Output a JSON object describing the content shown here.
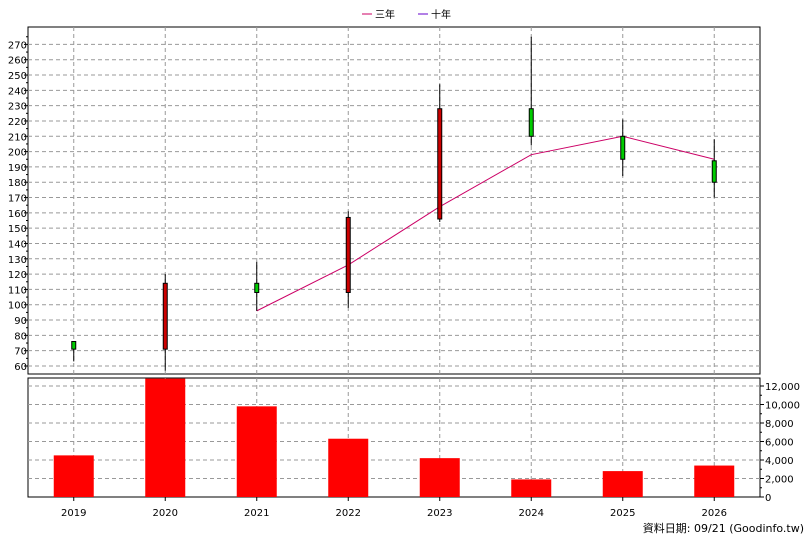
{
  "chart_data": {
    "type": "candlestick+bar",
    "legend": {
      "position": "top-center",
      "items": [
        {
          "label": "三年",
          "color": "#cc0066"
        },
        {
          "label": "十年",
          "color": "#6600cc"
        }
      ]
    },
    "categories": [
      "2019",
      "2020",
      "2021",
      "2022",
      "2023",
      "2024",
      "2025",
      "2026"
    ],
    "price_axis": {
      "ylim": [
        55,
        280
      ],
      "ticks": [
        60,
        70,
        80,
        90,
        100,
        110,
        120,
        130,
        140,
        150,
        160,
        170,
        180,
        190,
        200,
        210,
        220,
        230,
        240,
        250,
        260,
        270
      ],
      "grid": true
    },
    "candles": [
      {
        "x": "2019",
        "open": 71,
        "close": 76,
        "high": 76,
        "low": 63,
        "color": "#00cc00"
      },
      {
        "x": "2020",
        "open": 71,
        "close": 114,
        "high": 120,
        "low": 57,
        "color": "#cc0000"
      },
      {
        "x": "2021",
        "open": 114,
        "close": 108,
        "high": 128,
        "low": 96,
        "color": "#00cc00"
      },
      {
        "x": "2022",
        "open": 108,
        "close": 157,
        "high": 161,
        "low": 98,
        "color": "#cc0000"
      },
      {
        "x": "2023",
        "open": 156,
        "close": 228,
        "high": 244,
        "low": 154,
        "color": "#cc0000"
      },
      {
        "x": "2024",
        "open": 228,
        "close": 210,
        "high": 275,
        "low": 204,
        "color": "#00cc00"
      },
      {
        "x": "2025",
        "open": 210,
        "close": 195,
        "high": 221,
        "low": 184,
        "color": "#00cc00"
      },
      {
        "x": "2026",
        "open": 194,
        "close": 180,
        "high": 208,
        "low": 170,
        "color": "#00cc00"
      }
    ],
    "series": [
      {
        "name": "三年",
        "color": "#cc0066",
        "points": [
          {
            "x": "2021",
            "y": 96
          },
          {
            "x": "2022",
            "y": 126
          },
          {
            "x": "2023",
            "y": 164
          },
          {
            "x": "2024",
            "y": 198
          },
          {
            "x": "2025",
            "y": 210
          },
          {
            "x": "2026",
            "y": 195
          }
        ]
      }
    ],
    "volume_axis": {
      "ylim": [
        0,
        12500
      ],
      "ticks": [
        0,
        2000,
        4000,
        6000,
        8000,
        10000,
        12000
      ],
      "tick_labels": [
        "0",
        "2,000",
        "4,000",
        "6,000",
        "8,000",
        "10,000",
        "12,000"
      ],
      "position": "right"
    },
    "volume": {
      "color": "#ff0000",
      "values": [
        4500,
        12800,
        9800,
        6300,
        4200,
        1900,
        2800,
        3400
      ]
    },
    "footer_note": "資料日期: 09/21  (Goodinfo.tw)"
  }
}
